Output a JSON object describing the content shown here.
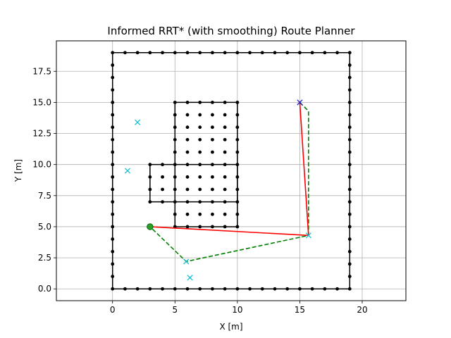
{
  "chart_data": {
    "type": "scatter",
    "title": "Informed RRT* (with smoothing) Route Planner",
    "xlabel": "X [m]",
    "ylabel": "Y [m]",
    "xlim": [
      -4.5,
      23.5
    ],
    "ylim": [
      -0.95,
      19.95
    ],
    "grid": true,
    "xticks": [
      0,
      5,
      10,
      15,
      20
    ],
    "yticks": [
      0.0,
      2.5,
      5.0,
      7.5,
      10.0,
      12.5,
      15.0,
      17.5
    ],
    "xtick_labels": [
      "0",
      "5",
      "10",
      "15",
      "20"
    ],
    "ytick_labels": [
      "0.0",
      "2.5",
      "5.0",
      "7.5",
      "10.0",
      "12.5",
      "15.0",
      "17.5"
    ],
    "obstacles": {
      "outer_boundary": [
        [
          0,
          0
        ],
        [
          19,
          0
        ],
        [
          19,
          19
        ],
        [
          0,
          19
        ],
        [
          0,
          0
        ]
      ],
      "inner_block_upper": [
        [
          5,
          5
        ],
        [
          10,
          5
        ],
        [
          10,
          15
        ],
        [
          5,
          15
        ],
        [
          5,
          5
        ]
      ],
      "inner_block_left": [
        [
          3,
          7
        ],
        [
          10,
          7
        ],
        [
          10,
          10
        ],
        [
          3,
          10
        ],
        [
          3,
          7
        ]
      ]
    },
    "sampled_points": [
      [
        2.0,
        13.4
      ],
      [
        1.2,
        9.5
      ],
      [
        6.2,
        0.9
      ],
      [
        5.9,
        2.2
      ],
      [
        15.7,
        4.3
      ]
    ],
    "start": [
      3.0,
      5.0
    ],
    "goal": [
      15.0,
      15.0
    ],
    "raw_path": [
      [
        15.0,
        15.0
      ],
      [
        15.7,
        14.3
      ],
      [
        15.7,
        4.3
      ],
      [
        5.9,
        2.2
      ],
      [
        3.0,
        5.0
      ]
    ],
    "smoothed_path": [
      [
        15.0,
        15.0
      ],
      [
        15.7,
        4.3
      ],
      [
        3.0,
        5.0
      ]
    ],
    "colors": {
      "obstacle": "#000000",
      "sample": "#17becf",
      "start": "#2ca02c",
      "goal": "#1f1fb4",
      "raw_path": "#008000",
      "smoothed_path": "#ff0000",
      "start_edge": "#006400",
      "grid": "#b0b0b0"
    }
  }
}
